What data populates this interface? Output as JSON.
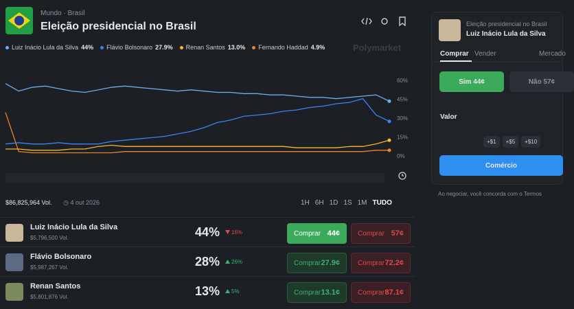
{
  "header": {
    "breadcrumb": [
      "Mundo",
      "Brasil"
    ],
    "title": "Eleição presidencial no Brasil",
    "brand": "Polymarket"
  },
  "chart_data": {
    "type": "line",
    "categories": [
      null,
      null,
      null,
      null,
      null,
      null,
      null,
      null,
      null,
      null,
      null,
      null,
      null,
      null,
      null,
      null,
      null,
      null,
      null,
      null,
      null,
      null,
      null,
      null,
      null,
      null,
      null,
      null,
      null,
      null
    ],
    "series": [
      {
        "name": "Luiz Inácio Lula da Silva",
        "color": "#6aaef0",
        "current": 44,
        "current_label": "44%",
        "values": [
          58,
          52,
          55,
          56,
          54,
          52,
          51,
          53,
          55,
          56,
          55,
          54,
          53,
          52,
          53,
          52,
          51,
          51,
          50,
          50,
          49,
          49,
          48,
          47,
          47,
          46,
          47,
          48,
          49,
          44
        ]
      },
      {
        "name": "Flávio Bolsonaro",
        "color": "#3b82f6",
        "current": 27.9,
        "current_label": "27.9%",
        "values": [
          10,
          11,
          10,
          10,
          11,
          10,
          10,
          10,
          12,
          13,
          14,
          15,
          16,
          18,
          20,
          23,
          27,
          29,
          32,
          33,
          34,
          36,
          37,
          39,
          40,
          42,
          43,
          46,
          33,
          28
        ]
      },
      {
        "name": "Renan Santos",
        "color": "#f5b82e",
        "current": 13.0,
        "current_label": "13.0%",
        "values": [
          6,
          6,
          5,
          5,
          5,
          6,
          6,
          8,
          9,
          8,
          8,
          8,
          8,
          8,
          8,
          8,
          8,
          8,
          8,
          8,
          8,
          8,
          7,
          7,
          7,
          7,
          8,
          8,
          10,
          13
        ]
      },
      {
        "name": "Fernando Haddad",
        "color": "#f0812a",
        "current": 4.9,
        "current_label": "4.9%",
        "values": [
          35,
          4,
          3,
          3,
          3,
          3,
          3,
          3,
          3,
          4,
          4,
          4,
          4,
          4,
          4,
          4,
          4,
          4,
          4,
          4,
          4,
          4,
          4,
          4,
          4,
          4,
          4,
          4,
          5,
          5
        ]
      }
    ],
    "ylim": [
      0,
      72
    ],
    "yticks": [
      {
        "value": 0,
        "label": "0%"
      },
      {
        "value": 15,
        "label": "15%"
      },
      {
        "value": 30,
        "label": "30%"
      },
      {
        "value": 45,
        "label": "45%"
      },
      {
        "value": 60,
        "label": "60%"
      }
    ],
    "grid": false
  },
  "stats": {
    "volume": "$86,825,964 Vol.",
    "date": "4 out 2026",
    "ranges": [
      "1H",
      "6H",
      "1D",
      "1S",
      "1M",
      "TUDO"
    ]
  },
  "outcomes": [
    {
      "name": "Luiz Inácio Lula da Silva",
      "volume": "$5,796,500 Vol.",
      "chance": "44%",
      "change": "16%",
      "direction": "down",
      "buy_yes": "Comprar",
      "yes_price": "44¢",
      "buy_no": "Comprar",
      "no_price": "57¢"
    },
    {
      "name": "Flávio Bolsonaro",
      "volume": "$5,987,267 Vol.",
      "chance": "28%",
      "change": "26%",
      "direction": "up",
      "buy_yes": "Comprar",
      "yes_price": "27.9¢",
      "buy_no": "Comprar",
      "no_price": "72.2¢"
    },
    {
      "name": "Renan Santos",
      "volume": "$5,801,876 Vol.",
      "chance": "13%",
      "change": "5%",
      "direction": "up",
      "buy_yes": "Comprar",
      "yes_price": "13.1¢",
      "buy_no": "Comprar",
      "no_price": "87.1¢"
    }
  ],
  "trade": {
    "market": "Eleição presidencial no Brasil",
    "outcome": "Luiz Inácio Lula da Silva",
    "tabs": [
      "Comprar",
      "Vender",
      "Mercado"
    ],
    "yes": "Sim 44¢",
    "no": "Não 57¢",
    "amount_label": "Valor",
    "quick": [
      "+$1",
      "+$5",
      "+$10"
    ],
    "submit": "Comércio",
    "terms": "Ao negociar, você concorda com o Termos"
  }
}
